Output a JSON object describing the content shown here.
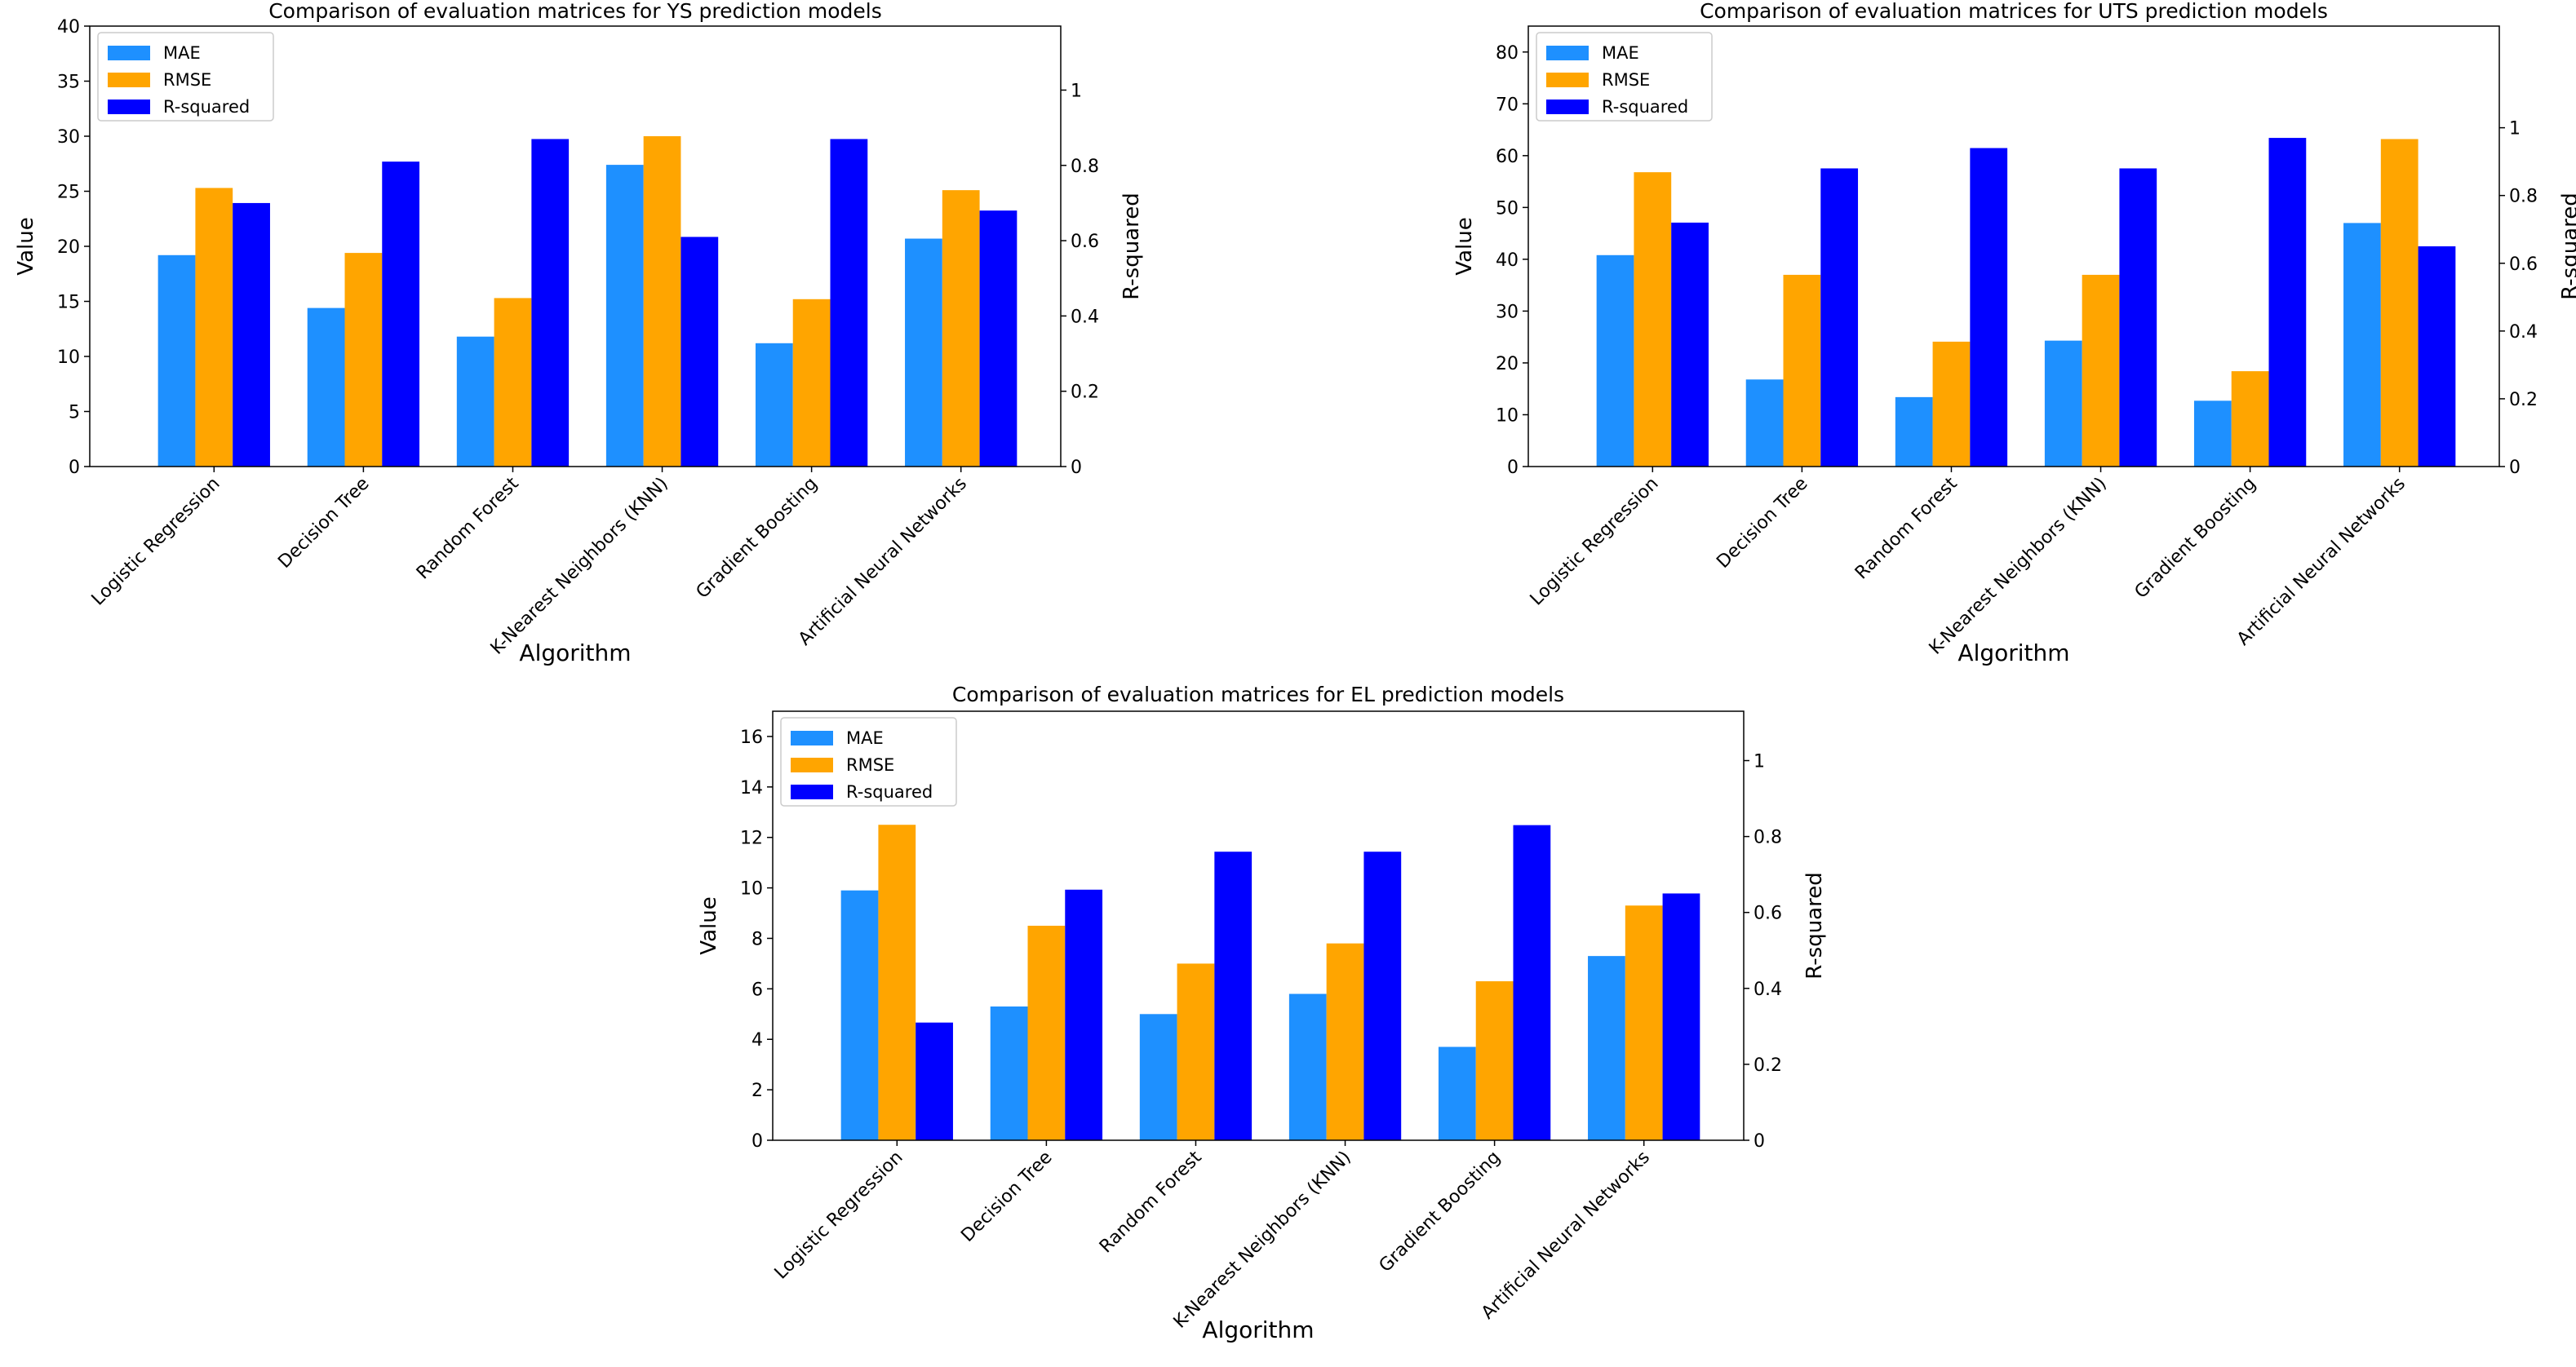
{
  "colors": {
    "mae": "#1e90ff",
    "rmse": "#ffa500",
    "rsq": "#0000ff"
  },
  "chart_data": [
    {
      "id": "ys",
      "type": "bar",
      "title": "Comparison of evaluation matrices for YS prediction models",
      "xlabel": "Algorithm",
      "ylabel": "Value",
      "y2label": "R-squared",
      "categories": [
        "Logistic Regression",
        "Decision Tree",
        "Random Forest",
        "K-Nearest Neighbors (KNN)",
        "Gradient Boosting",
        "Artificial Neural Networks"
      ],
      "series": [
        {
          "name": "MAE",
          "axis": "left",
          "values": [
            19.2,
            14.4,
            11.8,
            27.4,
            11.2,
            20.7
          ]
        },
        {
          "name": "RMSE",
          "axis": "left",
          "values": [
            25.3,
            19.4,
            15.3,
            30.0,
            15.2,
            25.1
          ]
        },
        {
          "name": "R-squared",
          "axis": "right",
          "values": [
            0.7,
            0.81,
            0.87,
            0.61,
            0.87,
            0.68
          ]
        }
      ],
      "ylim": [
        0,
        40
      ],
      "yticks": [
        0,
        5,
        10,
        15,
        20,
        25,
        30,
        35,
        40
      ],
      "y2lim": [
        0,
        1.17
      ],
      "y2ticks": [
        0,
        0.2,
        0.4,
        0.6,
        0.8,
        1
      ],
      "y2ticklabels": [
        "0",
        "0.2",
        "0.4",
        "0.6",
        "0.8",
        "1"
      ],
      "legend": "top-left"
    },
    {
      "id": "uts",
      "type": "bar",
      "title": "Comparison of evaluation matrices for UTS prediction models",
      "xlabel": "Algorithm",
      "ylabel": "Value",
      "y2label": "R-squared",
      "categories": [
        "Logistic Regression",
        "Decision Tree",
        "Random Forest",
        "K-Nearest Neighbors (KNN)",
        "Gradient Boosting",
        "Artificial Neural Networks"
      ],
      "series": [
        {
          "name": "MAE",
          "axis": "left",
          "values": [
            40.8,
            16.8,
            13.4,
            24.3,
            12.7,
            47.0
          ]
        },
        {
          "name": "RMSE",
          "axis": "left",
          "values": [
            56.8,
            37.0,
            24.1,
            37.0,
            18.4,
            63.2
          ]
        },
        {
          "name": "R-squared",
          "axis": "right",
          "values": [
            0.72,
            0.88,
            0.94,
            0.88,
            0.97,
            0.65
          ]
        }
      ],
      "ylim": [
        0,
        85
      ],
      "yticks": [
        0,
        10,
        20,
        30,
        40,
        50,
        60,
        70,
        80
      ],
      "y2lim": [
        0,
        1.3
      ],
      "y2ticks": [
        0,
        0.2,
        0.4,
        0.6,
        0.8,
        1
      ],
      "y2ticklabels": [
        "0",
        "0.2",
        "0.4",
        "0.6",
        "0.8",
        "1"
      ],
      "legend": "top-left"
    },
    {
      "id": "el",
      "type": "bar",
      "title": "Comparison of evaluation matrices for EL prediction models",
      "xlabel": "Algorithm",
      "ylabel": "Value",
      "y2label": "R-squared",
      "categories": [
        "Logistic Regression",
        "Decision Tree",
        "Random Forest",
        "K-Nearest Neighbors (KNN)",
        "Gradient Boosting",
        "Artificial Neural Networks"
      ],
      "series": [
        {
          "name": "MAE",
          "axis": "left",
          "values": [
            9.9,
            5.3,
            5.0,
            5.8,
            3.7,
            7.3
          ]
        },
        {
          "name": "RMSE",
          "axis": "left",
          "values": [
            12.5,
            8.5,
            7.0,
            7.8,
            6.3,
            9.3
          ]
        },
        {
          "name": "R-squared",
          "axis": "right",
          "values": [
            0.31,
            0.66,
            0.76,
            0.76,
            0.83,
            0.65
          ]
        }
      ],
      "ylim": [
        0,
        17
      ],
      "yticks": [
        0,
        2,
        4,
        6,
        8,
        10,
        12,
        14,
        16
      ],
      "y2lim": [
        0,
        1.13
      ],
      "y2ticks": [
        0,
        0.2,
        0.4,
        0.6,
        0.8,
        1
      ],
      "y2ticklabels": [
        "0",
        "0.2",
        "0.4",
        "0.6",
        "0.8",
        "1"
      ],
      "legend": "top-left"
    }
  ]
}
